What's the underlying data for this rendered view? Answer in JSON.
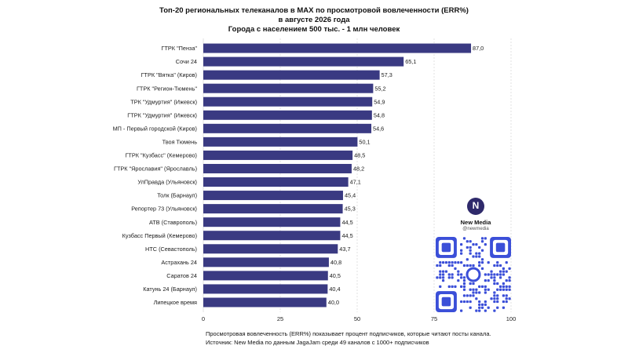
{
  "title": {
    "line1": "Топ-20 региональных телеканалов в MAX по просмотровой вовлеченности (ERR%)",
    "line2": "в августе 2026 года",
    "line3": "Города с населением 500 тыс. - 1 млн человек"
  },
  "chart_data": {
    "type": "bar",
    "orientation": "horizontal",
    "categories": [
      "ГТРК \"Пенза\"",
      "Сочи 24",
      "ГТРК \"Вятка\" (Киров)",
      "ГТРК \"Регион-Тюмень\"",
      "ТРК \"Удмуртия\" (Ижевск)",
      "ГТРК \"Удмуртия\" (Ижевск)",
      "МП - Первый городской (Киров)",
      "Твоя Тюмень",
      "ГТРК \"Кузбасс\" (Кемерово)",
      "ГТРК \"Ярославия\" (Ярославль)",
      "УлПравда (Ульяновск)",
      "Толк (Барнаул)",
      "Репортер 73 (Ульяновск)",
      "АТВ (Ставрополь)",
      "Кузбасс Первый (Кемерово)",
      "НТС (Севастополь)",
      "Астрахань 24",
      "Саратов 24",
      "Катунь 24 (Барнаул)",
      "Липецкое время"
    ],
    "values": [
      87.0,
      65.1,
      57.3,
      55.2,
      54.9,
      54.8,
      54.6,
      50.1,
      48.5,
      48.2,
      47.1,
      45.4,
      45.3,
      44.5,
      44.5,
      43.7,
      40.8,
      40.5,
      40.4,
      40.0
    ],
    "value_labels": [
      "87,0",
      "65,1",
      "57,3",
      "55,2",
      "54,9",
      "54,8",
      "54,6",
      "50,1",
      "48,5",
      "48,2",
      "47,1",
      "45,4",
      "45,3",
      "44,5",
      "44,5",
      "43,7",
      "40,8",
      "40,5",
      "40,4",
      "40,0"
    ],
    "xlim": [
      0,
      100
    ],
    "xticks": [
      0,
      25,
      50,
      75,
      100
    ],
    "xtick_labels": [
      "0",
      "25",
      "50",
      "75",
      "100"
    ],
    "grid": "vertical",
    "bar_color": "#3a3a82"
  },
  "brand": {
    "logo_letter": "N",
    "name": "New Media",
    "handle": "@newmedia",
    "qr_color": "#3b4fd8"
  },
  "footnote": {
    "line1": "Просмотровая вовлеченность (ERR%) показывает процент подписчиков, которые читают посты канала.",
    "line2": "Источник: New Media по данным JagaJam среди 49 каналов с 1000+ подписчиков"
  }
}
